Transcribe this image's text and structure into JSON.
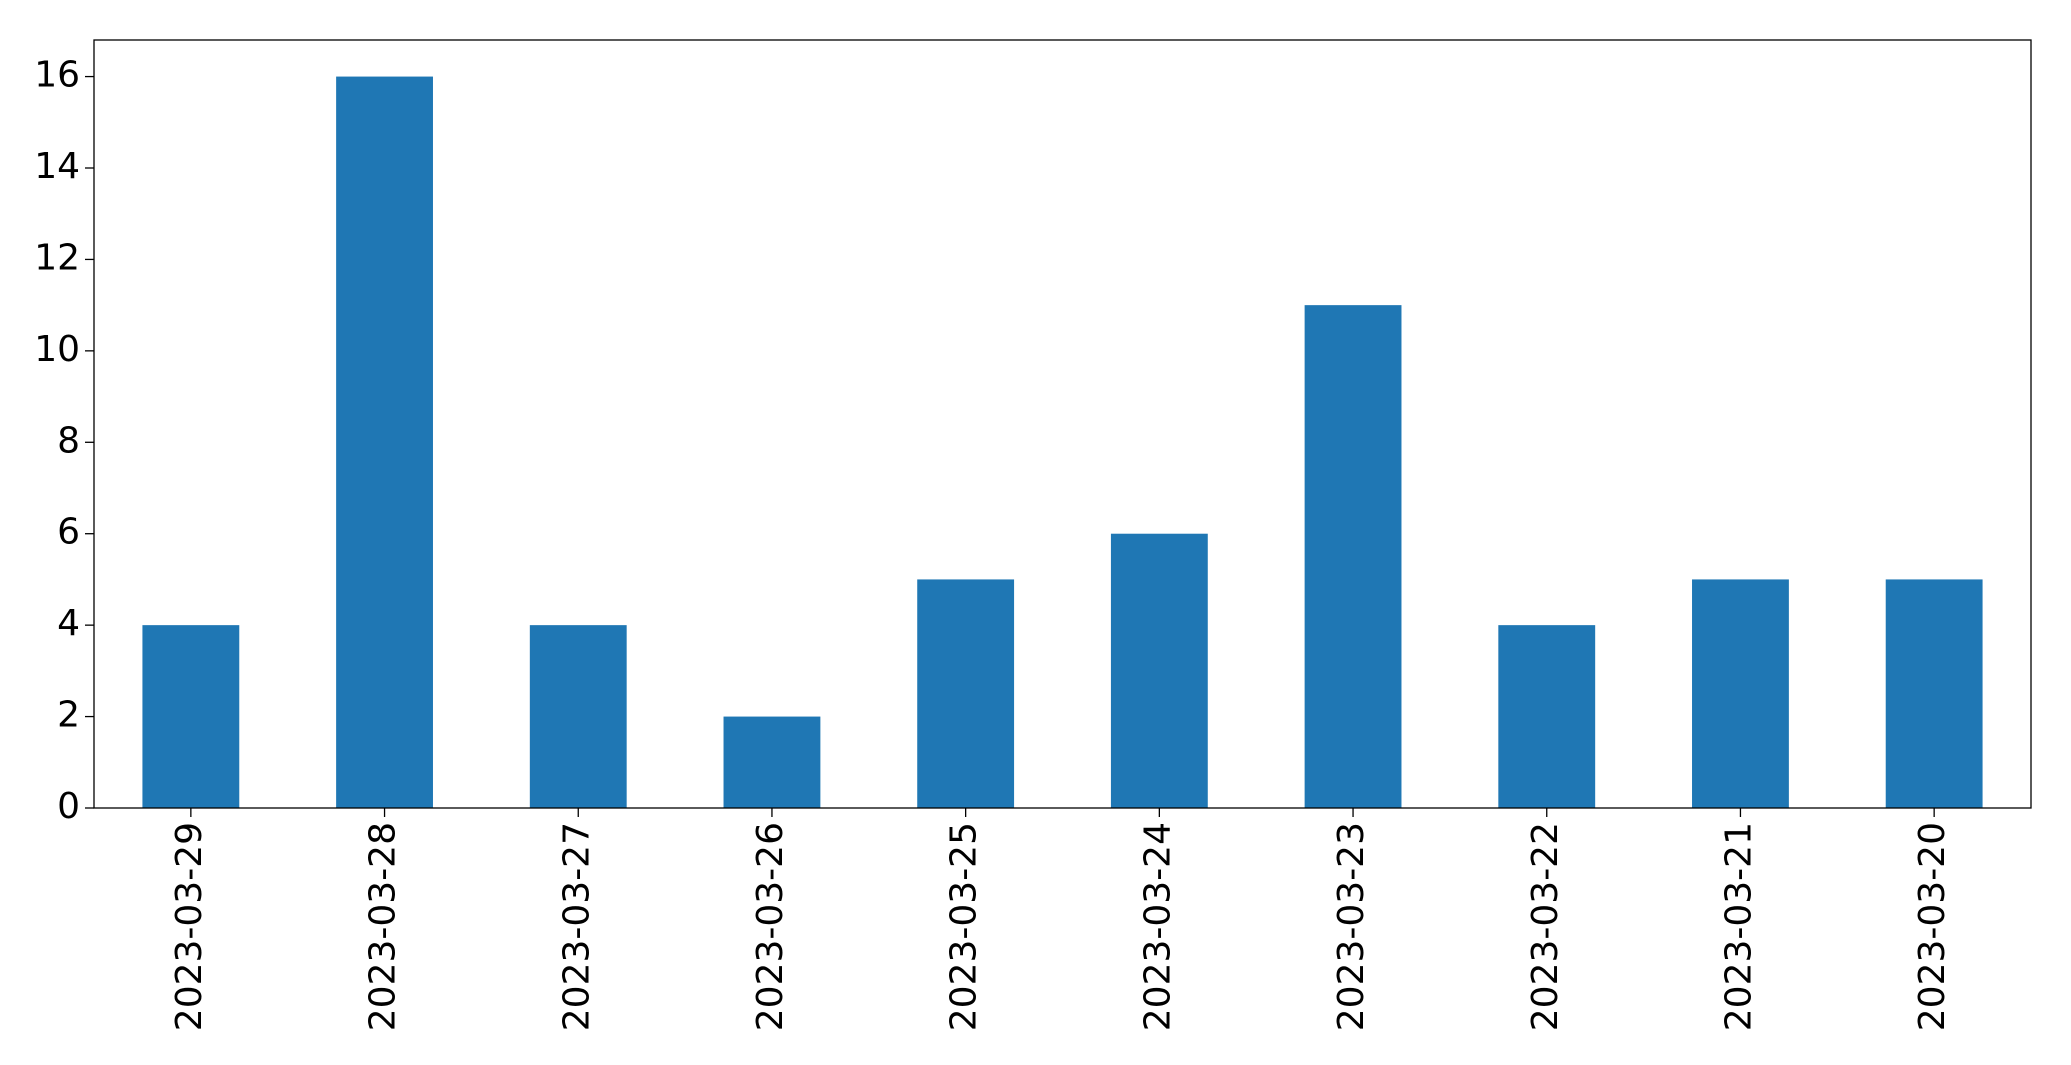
{
  "chart_data": {
    "type": "bar",
    "categories": [
      "2023-03-29",
      "2023-03-28",
      "2023-03-27",
      "2023-03-26",
      "2023-03-25",
      "2023-03-24",
      "2023-03-23",
      "2023-03-22",
      "2023-03-21",
      "2023-03-20"
    ],
    "values": [
      4,
      16,
      4,
      2,
      5,
      6,
      11,
      4,
      5,
      5
    ],
    "color": "#1f77b4",
    "ylim": [
      0,
      16.8
    ],
    "yticks": [
      0,
      2,
      4,
      6,
      8,
      10,
      12,
      14,
      16
    ],
    "grid": false
  }
}
